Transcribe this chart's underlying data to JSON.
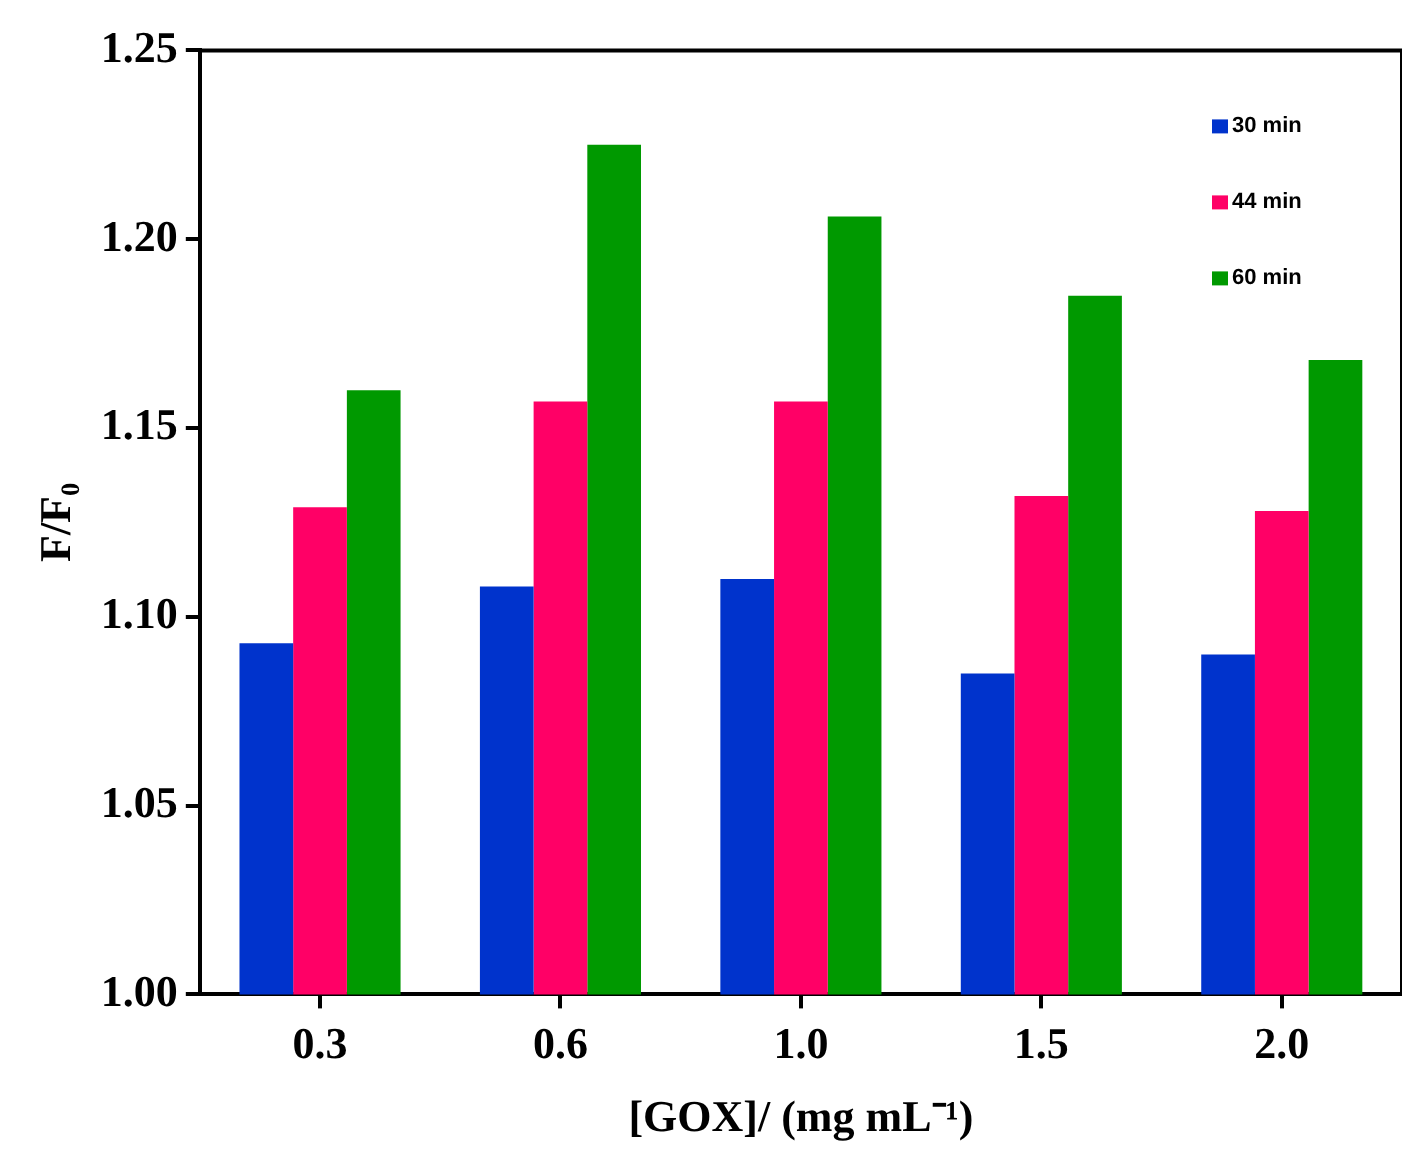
{
  "chart_data": {
    "type": "bar",
    "xlabel": "[GOX]/ (mg mL⁻¹)",
    "ylabel": "F/F₀",
    "categories": [
      "0.3",
      "0.6",
      "1.0",
      "1.5",
      "2.0"
    ],
    "series": [
      {
        "name": "30 min",
        "color": "#0033cc",
        "values": [
          1.093,
          1.108,
          1.11,
          1.085,
          1.09
        ]
      },
      {
        "name": "44 min",
        "color": "#ff0066",
        "values": [
          1.129,
          1.157,
          1.157,
          1.132,
          1.128
        ]
      },
      {
        "name": "60 min",
        "color": "#009900",
        "values": [
          1.16,
          1.225,
          1.206,
          1.185,
          1.168
        ]
      }
    ],
    "ylim": [
      1.0,
      1.25
    ],
    "yticks": [
      {
        "value": 1.0,
        "label": "1.00"
      },
      1.05,
      {
        "value": 1.1,
        "label": "1.10"
      },
      1.15,
      {
        "value": 1.2,
        "label": "1.20"
      },
      1.25
    ],
    "legend": "top right"
  }
}
